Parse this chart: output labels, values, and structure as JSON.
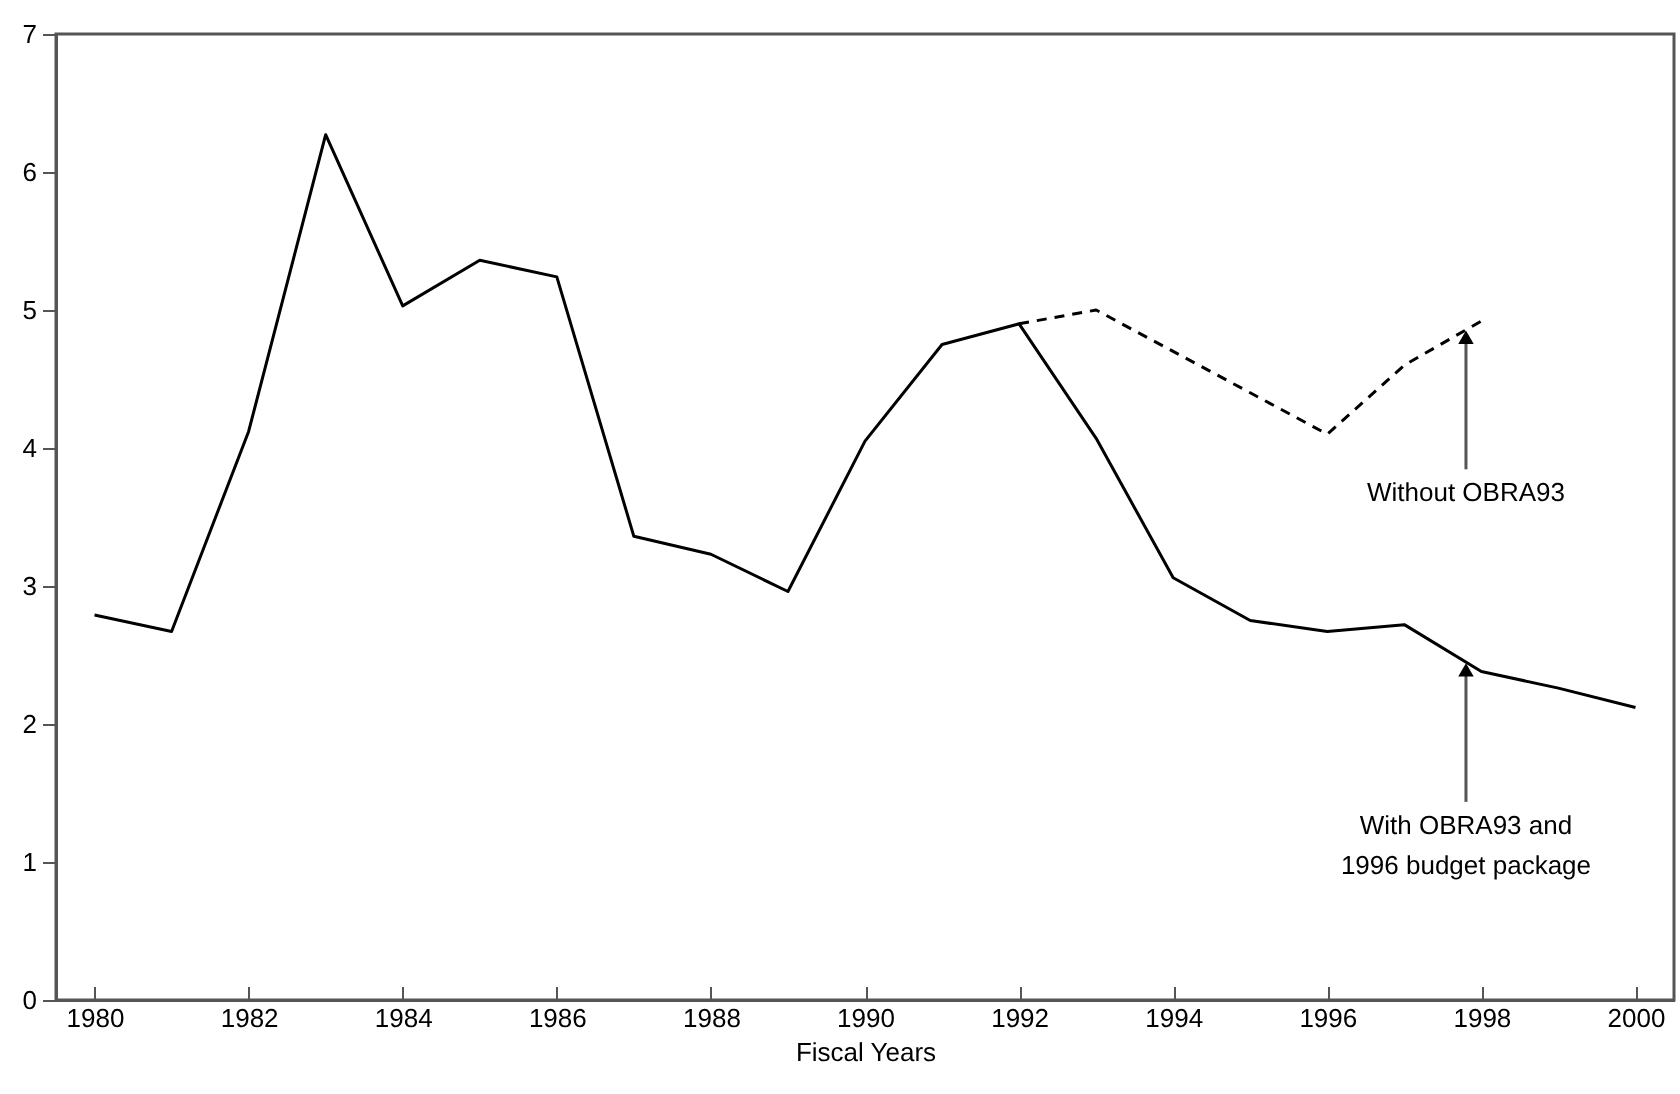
{
  "chart_data": {
    "type": "line",
    "xlabel": "Fiscal Years",
    "xlim": [
      1979.5,
      2000.5
    ],
    "xticks": [
      1980,
      1982,
      1984,
      1986,
      1988,
      1990,
      1992,
      1994,
      1996,
      1998,
      2000
    ],
    "ylim": [
      0,
      7
    ],
    "yticks": [
      0,
      1,
      2,
      3,
      4,
      5,
      6,
      7
    ],
    "grid": false,
    "marker": "none",
    "series": [
      {
        "color": "#000000",
        "line_style": "solid",
        "x": [
          1980,
          1981,
          1982,
          1983,
          1984,
          1985,
          1986,
          1987,
          1988,
          1989,
          1990,
          1991,
          1992,
          1993,
          1994,
          1995,
          1996,
          1997,
          1998,
          1999,
          2000
        ],
        "values": [
          2.79,
          2.67,
          4.12,
          6.27,
          5.03,
          5.36,
          5.24,
          3.36,
          3.23,
          2.96,
          4.05,
          4.75,
          4.9,
          4.07,
          3.06,
          2.75,
          2.67,
          2.72,
          2.38,
          2.26,
          2.12
        ]
      },
      {
        "color": "#000000",
        "line_style": "dashed",
        "x": [
          1992,
          1993,
          1994,
          1995,
          1996,
          1997,
          1998
        ],
        "values": [
          4.9,
          5.0,
          4.7,
          4.4,
          4.1,
          4.6,
          4.92
        ]
      }
    ],
    "annotations": [
      {
        "text": "Without OBRA93",
        "x": 1997.8,
        "y": 4.86
      },
      {
        "text": "With OBRA93 and\n1996 budget package",
        "x": 1997.8,
        "y": 2.45
      }
    ]
  }
}
